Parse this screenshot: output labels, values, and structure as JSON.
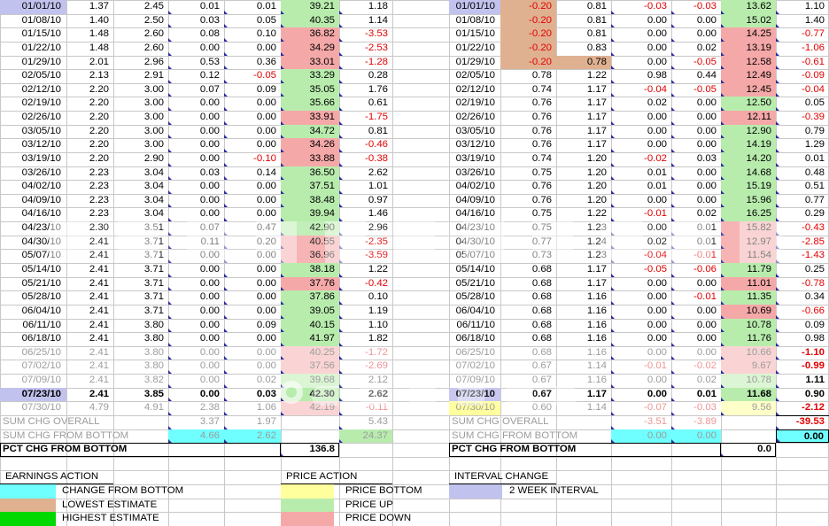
{
  "colors": {
    "grid": "#c8c8c8",
    "red": "#e30000",
    "muted_red": "#ef9595",
    "muted_text": "#9c9c9c",
    "cyan": "#70ffff",
    "tan": "#dfb191",
    "bright_green": "#00d900",
    "yellow": "#ffff9e",
    "yellow_muted": "#ffffc9",
    "price_up": "#b8ecad",
    "price_up_muted": "#dcf5d4",
    "price_down": "#f5a8a8",
    "price_down_muted": "#fad4d4",
    "lavender": "#c2c2ef",
    "marker": "#2b2ba0"
  },
  "left_table": {
    "rows": [
      {
        "date": "01/01/10",
        "lo": "1.37",
        "hi": "2.45",
        "clo": "0.01",
        "chi": "0.01",
        "price": "39.21",
        "chg": "1.18",
        "dir": "up",
        "hl": "interval"
      },
      {
        "date": "01/08/10",
        "lo": "1.40",
        "hi": "2.50",
        "clo": "0.03",
        "chi": "0.05",
        "price": "40.35",
        "chg": "1.14",
        "dir": "up"
      },
      {
        "date": "01/15/10",
        "lo": "1.48",
        "hi": "2.60",
        "clo": "0.08",
        "chi": "0.10",
        "price": "36.82",
        "chg": "-3.53",
        "dir": "down"
      },
      {
        "date": "01/22/10",
        "lo": "1.48",
        "hi": "2.60",
        "clo": "0.00",
        "chi": "0.00",
        "price": "34.29",
        "chg": "-2.53",
        "dir": "down"
      },
      {
        "date": "01/29/10",
        "lo": "2.01",
        "hi": "2.96",
        "clo": "0.53",
        "chi": "0.36",
        "price": "33.01",
        "chg": "-1.28",
        "dir": "down"
      },
      {
        "date": "02/05/10",
        "lo": "2.13",
        "hi": "2.91",
        "clo": "0.12",
        "chi": "-0.05",
        "price": "33.29",
        "chg": "0.28",
        "dir": "up"
      },
      {
        "date": "02/12/10",
        "lo": "2.20",
        "hi": "3.00",
        "clo": "0.07",
        "chi": "0.09",
        "price": "35.05",
        "chg": "1.76",
        "dir": "up"
      },
      {
        "date": "02/19/10",
        "lo": "2.20",
        "hi": "3.00",
        "clo": "0.00",
        "chi": "0.00",
        "price": "35.66",
        "chg": "0.61",
        "dir": "up"
      },
      {
        "date": "02/26/10",
        "lo": "2.20",
        "hi": "3.00",
        "clo": "0.00",
        "chi": "0.00",
        "price": "33.91",
        "chg": "-1.75",
        "dir": "down"
      },
      {
        "date": "03/05/10",
        "lo": "2.20",
        "hi": "3.00",
        "clo": "0.00",
        "chi": "0.00",
        "price": "34.72",
        "chg": "0.81",
        "dir": "up"
      },
      {
        "date": "03/12/10",
        "lo": "2.20",
        "hi": "3.00",
        "clo": "0.00",
        "chi": "0.00",
        "price": "34.26",
        "chg": "-0.46",
        "dir": "down"
      },
      {
        "date": "03/19/10",
        "lo": "2.20",
        "hi": "2.90",
        "clo": "0.00",
        "chi": "-0.10",
        "price": "33.88",
        "chg": "-0.38",
        "dir": "down"
      },
      {
        "date": "03/26/10",
        "lo": "2.23",
        "hi": "3.04",
        "clo": "0.03",
        "chi": "0.14",
        "price": "36.50",
        "chg": "2.62",
        "dir": "up"
      },
      {
        "date": "04/02/10",
        "lo": "2.23",
        "hi": "3.04",
        "clo": "0.00",
        "chi": "0.00",
        "price": "37.51",
        "chg": "1.01",
        "dir": "up"
      },
      {
        "date": "04/09/10",
        "lo": "2.23",
        "hi": "3.04",
        "clo": "0.00",
        "chi": "0.00",
        "price": "38.48",
        "chg": "0.97",
        "dir": "up"
      },
      {
        "date": "04/16/10",
        "lo": "2.23",
        "hi": "3.04",
        "clo": "0.00",
        "chi": "0.00",
        "price": "39.94",
        "chg": "1.46",
        "dir": "up"
      },
      {
        "date": "04/23/10",
        "lo": "2.30",
        "hi": "3.51",
        "clo": "0.07",
        "chi": "0.47",
        "price": "42.90",
        "chg": "2.96",
        "dir": "up"
      },
      {
        "date": "04/30/10",
        "lo": "2.41",
        "hi": "3.71",
        "clo": "0.11",
        "chi": "0.20",
        "price": "40.55",
        "chg": "-2.35",
        "dir": "down"
      },
      {
        "date": "05/07/10",
        "lo": "2.41",
        "hi": "3.71",
        "clo": "0.00",
        "chi": "0.00",
        "price": "36.96",
        "chg": "-3.59",
        "dir": "down"
      },
      {
        "date": "05/14/10",
        "lo": "2.41",
        "hi": "3.71",
        "clo": "0.00",
        "chi": "0.00",
        "price": "38.18",
        "chg": "1.22",
        "dir": "up"
      },
      {
        "date": "05/21/10",
        "lo": "2.41",
        "hi": "3.71",
        "clo": "0.00",
        "chi": "0.00",
        "price": "37.76",
        "chg": "-0.42",
        "dir": "down"
      },
      {
        "date": "05/28/10",
        "lo": "2.41",
        "hi": "3.71",
        "clo": "0.00",
        "chi": "0.00",
        "price": "37.86",
        "chg": "0.10",
        "dir": "up"
      },
      {
        "date": "06/04/10",
        "lo": "2.41",
        "hi": "3.71",
        "clo": "0.00",
        "chi": "0.00",
        "price": "39.05",
        "chg": "1.19",
        "dir": "up"
      },
      {
        "date": "06/11/10",
        "lo": "2.41",
        "hi": "3.80",
        "clo": "0.00",
        "chi": "0.09",
        "price": "40.15",
        "chg": "1.10",
        "dir": "up"
      },
      {
        "date": "06/18/10",
        "lo": "2.41",
        "hi": "3.80",
        "clo": "0.00",
        "chi": "0.00",
        "price": "41.97",
        "chg": "1.82",
        "dir": "up"
      },
      {
        "date": "06/25/10",
        "lo": "2.41",
        "hi": "3.80",
        "clo": "0.00",
        "chi": "0.00",
        "price": "40.25",
        "chg": "-1.72",
        "dir": "down",
        "mut": 1
      },
      {
        "date": "07/02/10",
        "lo": "2.41",
        "hi": "3.80",
        "clo": "0.00",
        "chi": "0.00",
        "price": "37.56",
        "chg": "-2.69",
        "dir": "down",
        "mut": 1
      },
      {
        "date": "07/09/10",
        "lo": "2.41",
        "hi": "3.82",
        "clo": "0.00",
        "chi": "0.02",
        "price": "39.68",
        "chg": "2.12",
        "dir": "up",
        "mut": 1
      },
      {
        "date": "07/23/10",
        "lo": "2.41",
        "hi": "3.85",
        "clo": "0.00",
        "chi": "0.03",
        "price": "42.30",
        "chg": "2.62",
        "dir": "up",
        "hl": "interval",
        "bold": 1
      },
      {
        "date": "07/30/10",
        "lo": "4.79",
        "hi": "4.91",
        "clo": "2.38",
        "chi": "1.06",
        "price": "42.19",
        "chg": "-0.11",
        "dir": "down",
        "mut": 1
      }
    ],
    "sum_overall": {
      "label": "SUM CHG OVERALL",
      "clo": "3.37",
      "chi": "1.97",
      "chg": "5.43"
    },
    "sum_bottom": {
      "label": "SUM CHG FROM BOTTOM",
      "clo": "4.66",
      "chi": "2.62",
      "chg": "24.37"
    },
    "pct": {
      "label": "PCT CHG FROM BOTTOM",
      "value": "136.8"
    }
  },
  "right_table": {
    "rows": [
      {
        "date": "01/01/10",
        "lo": "-0.20",
        "hi": "0.81",
        "clo": "-0.03",
        "chi": "-0.03",
        "price": "13.62",
        "chg": "1.10",
        "dir": "up",
        "hl": "interval",
        "lo_hl": "tan"
      },
      {
        "date": "01/08/10",
        "lo": "-0.20",
        "hi": "0.81",
        "clo": "0.00",
        "chi": "0.00",
        "price": "15.02",
        "chg": "1.40",
        "dir": "up",
        "lo_hl": "tan"
      },
      {
        "date": "01/15/10",
        "lo": "-0.20",
        "hi": "0.81",
        "clo": "0.00",
        "chi": "0.00",
        "price": "14.25",
        "chg": "-0.77",
        "dir": "down",
        "lo_hl": "tan"
      },
      {
        "date": "01/22/10",
        "lo": "-0.20",
        "hi": "0.83",
        "clo": "0.00",
        "chi": "0.02",
        "price": "13.19",
        "chg": "-1.06",
        "dir": "down",
        "lo_hl": "tan"
      },
      {
        "date": "01/29/10",
        "lo": "-0.20",
        "hi": "0.78",
        "clo": "0.00",
        "chi": "-0.05",
        "price": "12.58",
        "chg": "-0.61",
        "dir": "down",
        "lo_hl": "tan",
        "hi_hl": "tan"
      },
      {
        "date": "02/05/10",
        "lo": "0.78",
        "hi": "1.22",
        "clo": "0.98",
        "chi": "0.44",
        "price": "12.49",
        "chg": "-0.09",
        "dir": "down"
      },
      {
        "date": "02/12/10",
        "lo": "0.74",
        "hi": "1.17",
        "clo": "-0.04",
        "chi": "-0.05",
        "price": "12.45",
        "chg": "-0.04",
        "dir": "down"
      },
      {
        "date": "02/19/10",
        "lo": "0.76",
        "hi": "1.17",
        "clo": "0.02",
        "chi": "0.00",
        "price": "12.50",
        "chg": "0.05",
        "dir": "up"
      },
      {
        "date": "02/26/10",
        "lo": "0.76",
        "hi": "1.17",
        "clo": "0.00",
        "chi": "0.00",
        "price": "12.11",
        "chg": "-0.39",
        "dir": "down"
      },
      {
        "date": "03/05/10",
        "lo": "0.76",
        "hi": "1.17",
        "clo": "0.00",
        "chi": "0.00",
        "price": "12.90",
        "chg": "0.79",
        "dir": "up"
      },
      {
        "date": "03/12/10",
        "lo": "0.76",
        "hi": "1.17",
        "clo": "0.00",
        "chi": "0.00",
        "price": "14.19",
        "chg": "1.29",
        "dir": "up"
      },
      {
        "date": "03/19/10",
        "lo": "0.74",
        "hi": "1.20",
        "clo": "-0.02",
        "chi": "0.03",
        "price": "14.20",
        "chg": "0.01",
        "dir": "up"
      },
      {
        "date": "03/26/10",
        "lo": "0.75",
        "hi": "1.20",
        "clo": "0.01",
        "chi": "0.00",
        "price": "14.68",
        "chg": "0.48",
        "dir": "up"
      },
      {
        "date": "04/02/10",
        "lo": "0.76",
        "hi": "1.20",
        "clo": "0.01",
        "chi": "0.00",
        "price": "15.19",
        "chg": "0.51",
        "dir": "up"
      },
      {
        "date": "04/09/10",
        "lo": "0.76",
        "hi": "1.20",
        "clo": "0.00",
        "chi": "0.00",
        "price": "15.96",
        "chg": "0.77",
        "dir": "up"
      },
      {
        "date": "04/16/10",
        "lo": "0.75",
        "hi": "1.22",
        "clo": "-0.01",
        "chi": "0.02",
        "price": "16.25",
        "chg": "0.29",
        "dir": "up"
      },
      {
        "date": "04/23/10",
        "lo": "0.75",
        "hi": "1.23",
        "clo": "0.00",
        "chi": "0.01",
        "price": "15.82",
        "chg": "-0.43",
        "dir": "down"
      },
      {
        "date": "04/30/10",
        "lo": "0.77",
        "hi": "1.24",
        "clo": "0.02",
        "chi": "0.01",
        "price": "12.97",
        "chg": "-2.85",
        "dir": "down"
      },
      {
        "date": "05/07/10",
        "lo": "0.73",
        "hi": "1.23",
        "clo": "-0.04",
        "chi": "-0.01",
        "price": "11.54",
        "chg": "-1.43",
        "dir": "down"
      },
      {
        "date": "05/14/10",
        "lo": "0.68",
        "hi": "1.17",
        "clo": "-0.05",
        "chi": "-0.06",
        "price": "11.79",
        "chg": "0.25",
        "dir": "up"
      },
      {
        "date": "05/21/10",
        "lo": "0.68",
        "hi": "1.17",
        "clo": "0.00",
        "chi": "0.00",
        "price": "11.01",
        "chg": "-0.78",
        "dir": "down"
      },
      {
        "date": "05/28/10",
        "lo": "0.68",
        "hi": "1.16",
        "clo": "0.00",
        "chi": "-0.01",
        "price": "11.35",
        "chg": "0.34",
        "dir": "up"
      },
      {
        "date": "06/04/10",
        "lo": "0.68",
        "hi": "1.16",
        "clo": "0.00",
        "chi": "0.00",
        "price": "10.69",
        "chg": "-0.66",
        "dir": "down"
      },
      {
        "date": "06/11/10",
        "lo": "0.68",
        "hi": "1.16",
        "clo": "0.00",
        "chi": "0.00",
        "price": "10.78",
        "chg": "0.09",
        "dir": "up"
      },
      {
        "date": "06/18/10",
        "lo": "0.68",
        "hi": "1.16",
        "clo": "0.00",
        "chi": "0.00",
        "price": "11.76",
        "chg": "0.98",
        "dir": "up"
      },
      {
        "date": "06/25/10",
        "lo": "0.68",
        "hi": "1.16",
        "clo": "0.00",
        "chi": "0.00",
        "price": "10.66",
        "chg": "-1.10",
        "dir": "down",
        "mut": 1
      },
      {
        "date": "07/02/10",
        "lo": "0.67",
        "hi": "1.14",
        "clo": "-0.01",
        "chi": "-0.02",
        "price": "9.67",
        "chg": "-0.99",
        "dir": "down",
        "mut": 1
      },
      {
        "date": "07/09/10",
        "lo": "0.67",
        "hi": "1.16",
        "clo": "0.00",
        "chi": "0.02",
        "price": "10.78",
        "chg": "1.11",
        "dir": "up",
        "mut": 1
      },
      {
        "date": "07/23/10",
        "lo": "0.67",
        "hi": "1.17",
        "clo": "0.00",
        "chi": "0.01",
        "price": "11.68",
        "chg": "0.90",
        "dir": "up",
        "hl": "interval",
        "bold": 1
      },
      {
        "date": "07/30/10",
        "lo": "0.60",
        "hi": "1.14",
        "clo": "-0.07",
        "chi": "-0.03",
        "price": "9.56",
        "chg": "-2.12",
        "dir": "bottom",
        "hl": "bottom",
        "mut": 1
      }
    ],
    "sum_overall": {
      "label": "SUM CHG OVERALL",
      "clo": "-3.51",
      "chi": "-3.89",
      "chg": "-39.53"
    },
    "sum_bottom": {
      "label": "SUM CHG FROM BOTTOM",
      "clo": "0.00",
      "chi": "0.00",
      "chg": "0.00"
    },
    "pct": {
      "label": "PCT CHG FROM BOTTOM",
      "value": "0.0"
    }
  },
  "legend": {
    "earnings_action": {
      "title": "EARNINGS ACTION",
      "items": [
        {
          "color": "cyan",
          "label": "CHANGE FROM BOTTOM"
        },
        {
          "color": "tan",
          "label": "LOWEST ESTIMATE"
        },
        {
          "color": "bright_green",
          "label": "HIGHEST ESTIMATE"
        }
      ]
    },
    "price_action": {
      "title": "PRICE ACTION",
      "items": [
        {
          "color": "yellow",
          "label": "PRICE BOTTOM"
        },
        {
          "color": "price_up",
          "label": "PRICE UP"
        },
        {
          "color": "price_down",
          "label": "PRICE DOWN"
        }
      ]
    },
    "interval_change": {
      "title": "INTERVAL CHANGE",
      "items": [
        {
          "color": "lavender",
          "label": "2 WEEK INTERVAL"
        }
      ]
    }
  }
}
